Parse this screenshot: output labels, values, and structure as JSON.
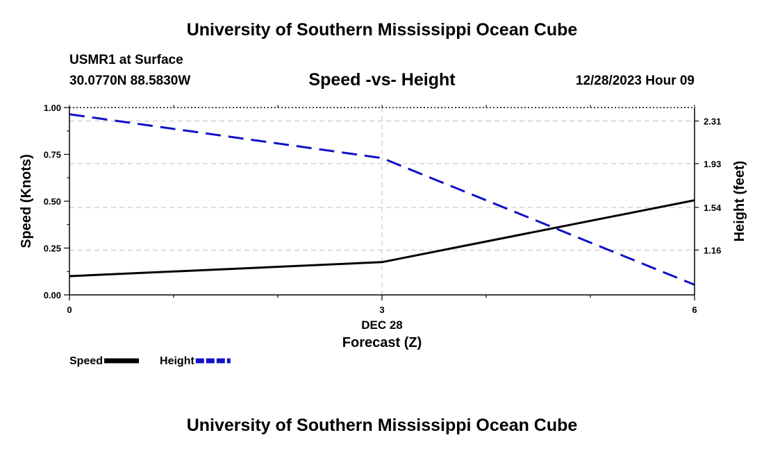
{
  "header": {
    "title": "University of Southern Mississippi Ocean Cube",
    "station": "USMR1 at Surface",
    "coords": "30.0770N  88.5830W",
    "datetime": "12/28/2023 Hour 09"
  },
  "footer": {
    "title": "University of Southern Mississippi Ocean Cube"
  },
  "chart_data": {
    "type": "line",
    "title": "Speed -vs- Height",
    "xlabel": "Forecast (Z)",
    "x_date_label": "DEC 28",
    "ylabel_left": "Speed (Knots)",
    "ylabel_right": "Height (feet)",
    "x": [
      0,
      3,
      6
    ],
    "x_ticks": [
      "0",
      "3",
      "6"
    ],
    "xlim": [
      0,
      6
    ],
    "ylim_left": [
      0,
      1
    ],
    "left_ticks": [
      "0.00",
      "0.25",
      "0.50",
      "0.75",
      "1.00"
    ],
    "right_ticks": [
      "1.16",
      "1.54",
      "1.93",
      "2.31"
    ],
    "right_tick_values": [
      1.16,
      1.54,
      1.93,
      2.31
    ],
    "ylim_right": [
      0.76,
      2.43
    ],
    "grid": true,
    "legend_position": "bottom-left",
    "series": [
      {
        "name": "Speed",
        "axis": "left",
        "color": "#000000",
        "dash": "solid",
        "values": [
          0.1,
          0.175,
          0.505
        ]
      },
      {
        "name": "Height",
        "axis": "right",
        "color": "#1010c8",
        "dash": "dashed",
        "values": [
          2.37,
          1.98,
          0.85
        ]
      }
    ]
  }
}
